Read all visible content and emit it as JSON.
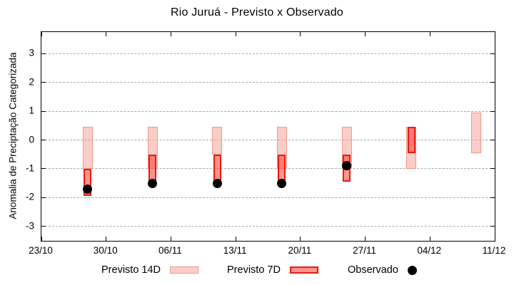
{
  "chart_data": {
    "type": "bar",
    "title": "Rio Juruá - Previsto x Observado",
    "ylabel": "Anomalia de Preciptação Categorizada",
    "xlabel": "",
    "ylim": [
      -3.5,
      3.75
    ],
    "grid": true,
    "legend_position": "bottom",
    "y_ticks": [
      3,
      2,
      1,
      0,
      -1,
      -2,
      -3
    ],
    "x_ticks": [
      "23/10",
      "30/10",
      "06/11",
      "13/11",
      "20/11",
      "27/11",
      "04/12",
      "11/12"
    ],
    "series": [
      {
        "name": "Previsto 14D",
        "type": "range_bar",
        "points": [
          {
            "date": "28/10",
            "high": 0.45,
            "low": -1.0
          },
          {
            "date": "04/11",
            "high": 0.45,
            "low": -1.0
          },
          {
            "date": "11/11",
            "high": 0.45,
            "low": -0.5
          },
          {
            "date": "18/11",
            "high": 0.45,
            "low": -1.0
          },
          {
            "date": "25/11",
            "high": 0.45,
            "low": -1.0
          },
          {
            "date": "02/12",
            "high": 0.45,
            "low": -1.0
          },
          {
            "date": "09/12",
            "high": 0.95,
            "low": -0.45
          }
        ]
      },
      {
        "name": "Previsto 7D",
        "type": "range_bar",
        "points": [
          {
            "date": "28/10",
            "high": -1.0,
            "low": -1.95
          },
          {
            "date": "04/11",
            "high": -0.5,
            "low": -1.45
          },
          {
            "date": "11/11",
            "high": -0.5,
            "low": -1.45
          },
          {
            "date": "18/11",
            "high": -0.5,
            "low": -1.45
          },
          {
            "date": "25/11",
            "high": -0.5,
            "low": -1.45
          },
          {
            "date": "02/12",
            "high": 0.45,
            "low": -0.45
          }
        ]
      },
      {
        "name": "Observado",
        "type": "scatter",
        "points": [
          {
            "date": "28/10",
            "value": -1.7
          },
          {
            "date": "04/11",
            "value": -1.5
          },
          {
            "date": "11/11",
            "value": -1.5
          },
          {
            "date": "18/11",
            "value": -1.5
          },
          {
            "date": "25/11",
            "value": -0.9
          }
        ]
      }
    ],
    "colors": {
      "forecast14_fill": "rgba(247,155,143,0.5)",
      "forecast14_border": "#f0968b",
      "forecast7_fill": "rgba(253,60,46,0.55)",
      "forecast7_border": "#e81b10",
      "observed": "#000000",
      "grid": "#a9a9a9",
      "axis": "#000000"
    }
  }
}
